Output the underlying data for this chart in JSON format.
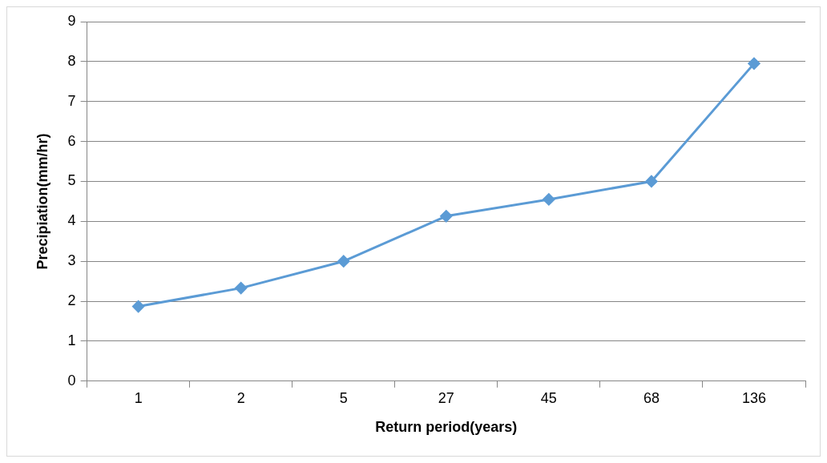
{
  "chart_data": {
    "type": "line",
    "xlabel": "Return period(years)",
    "ylabel": "Precipiation(mm/hr)",
    "categories": [
      "1",
      "2",
      "5",
      "27",
      "45",
      "68",
      "136"
    ],
    "series": [
      {
        "color": "#5b9bd5",
        "values": [
          1.87,
          2.33,
          3.0,
          4.13,
          4.55,
          5.0,
          7.95
        ]
      }
    ],
    "ylim": [
      0,
      9
    ],
    "yticks": [
      0,
      1,
      2,
      3,
      4,
      5,
      6,
      7,
      8,
      9
    ],
    "grid": "y",
    "legend": false,
    "marker": "diamond",
    "line_style": "solid"
  }
}
